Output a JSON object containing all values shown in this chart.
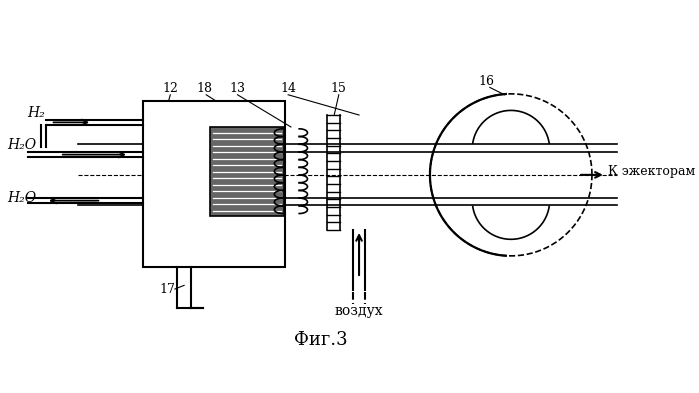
{
  "title": "Фиг.3",
  "bg_color": "#ffffff",
  "line_color": "#000000",
  "labels": {
    "H2_top": "H₂",
    "H2O_mid": "H₂O",
    "H2O_bot": "H₂O",
    "vozdukh": "воздух",
    "k_ezhektoram": "К эжекторам",
    "n12": "12",
    "n13": "13",
    "n14": "14",
    "n15": "15",
    "n16": "16",
    "n17": "17",
    "n18": "18"
  },
  "figsize": [
    6.99,
    3.93
  ],
  "dpi": 100
}
